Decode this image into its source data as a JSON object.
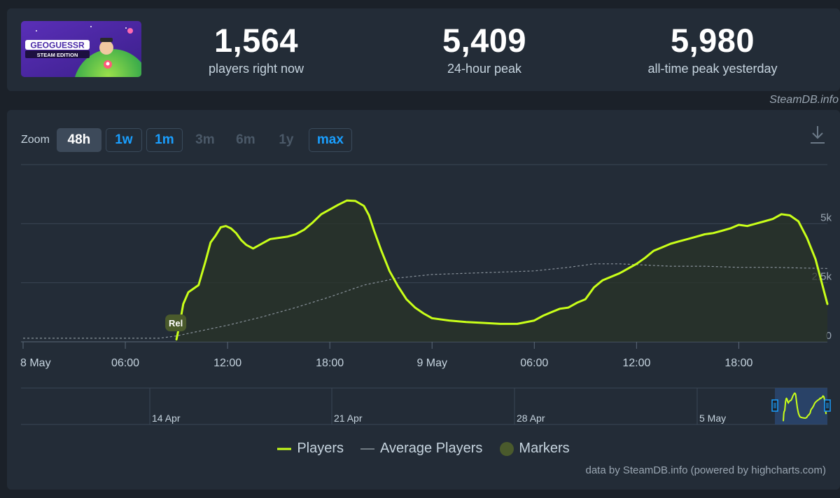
{
  "stats": [
    {
      "value": "1,564",
      "label": "players right now"
    },
    {
      "value": "5,409",
      "label": "24-hour peak"
    },
    {
      "value": "5,980",
      "label": "all-time peak yesterday"
    }
  ],
  "game": {
    "logo_text": "GEOGUESSR",
    "edition_text": "STEAM EDITION"
  },
  "credit_top": "SteamDB.info",
  "zoom": {
    "label": "Zoom",
    "buttons": [
      {
        "label": "48h",
        "state": "selected"
      },
      {
        "label": "1w",
        "state": "enabled"
      },
      {
        "label": "1m",
        "state": "enabled"
      },
      {
        "label": "3m",
        "state": "disabled"
      },
      {
        "label": "6m",
        "state": "disabled"
      },
      {
        "label": "1y",
        "state": "disabled"
      },
      {
        "label": "max",
        "state": "enabled"
      }
    ]
  },
  "colors": {
    "players": "#c9ff19",
    "average": "#8a939c",
    "marker": "#4a5a2c",
    "accent": "#1a9fff"
  },
  "legend": {
    "players": "Players",
    "average": "Average Players",
    "markers": "Markers"
  },
  "credit_bottom": "data by SteamDB.info (powered by highcharts.com)",
  "icons": {
    "download": "download-icon"
  },
  "chart_data": {
    "type": "line",
    "x_unit": "hours since 8 May 00:00",
    "xlim": [
      0,
      47.2
    ],
    "ylim": [
      0,
      7500
    ],
    "y_ticks": [
      {
        "value": 0,
        "label": "0"
      },
      {
        "value": 2500,
        "label": "2.5k"
      },
      {
        "value": 5000,
        "label": "5k"
      }
    ],
    "x_ticks": [
      {
        "value": 0,
        "label": "8 May"
      },
      {
        "value": 6,
        "label": "06:00"
      },
      {
        "value": 12,
        "label": "12:00"
      },
      {
        "value": 18,
        "label": "18:00"
      },
      {
        "value": 24,
        "label": "9 May"
      },
      {
        "value": 30,
        "label": "06:00"
      },
      {
        "value": 36,
        "label": "12:00"
      },
      {
        "value": 42,
        "label": "18:00"
      }
    ],
    "grid": true,
    "legend_position": "bottom-center",
    "series": [
      {
        "name": "Players",
        "x": [
          9.0,
          9.2,
          9.4,
          9.7,
          10.0,
          10.3,
          10.7,
          11.0,
          11.3,
          11.6,
          11.9,
          12.2,
          12.5,
          12.8,
          13.1,
          13.5,
          14.0,
          14.5,
          15.0,
          15.5,
          16.0,
          16.5,
          17.0,
          17.5,
          18.0,
          18.5,
          19.0,
          19.5,
          20.0,
          20.3,
          20.6,
          21.0,
          21.5,
          22.0,
          22.5,
          23.0,
          23.5,
          24.0,
          25.0,
          26.0,
          27.0,
          28.0,
          29.0,
          30.0,
          30.5,
          31.0,
          31.5,
          32.0,
          32.5,
          33.0,
          33.5,
          34.0,
          34.5,
          35.0,
          35.5,
          36.0,
          36.5,
          37.0,
          37.5,
          38.0,
          38.5,
          39.0,
          39.5,
          40.0,
          40.5,
          41.0,
          41.5,
          42.0,
          42.5,
          43.0,
          43.5,
          44.0,
          44.5,
          45.0,
          45.5,
          46.0,
          46.5,
          47.2
        ],
        "y": [
          100,
          800,
          1600,
          2100,
          2250,
          2400,
          3400,
          4200,
          4500,
          4850,
          4900,
          4800,
          4600,
          4300,
          4100,
          3950,
          4150,
          4350,
          4400,
          4450,
          4550,
          4750,
          5050,
          5400,
          5600,
          5800,
          5980,
          5960,
          5750,
          5350,
          4700,
          3900,
          3000,
          2350,
          1800,
          1450,
          1200,
          1000,
          900,
          840,
          800,
          760,
          760,
          900,
          1100,
          1250,
          1400,
          1450,
          1650,
          1800,
          2300,
          2600,
          2750,
          2900,
          3100,
          3300,
          3550,
          3850,
          4000,
          4150,
          4250,
          4350,
          4450,
          4550,
          4600,
          4700,
          4800,
          4950,
          4900,
          5000,
          5100,
          5200,
          5400,
          5350,
          5100,
          4400,
          3500,
          1600
        ]
      },
      {
        "name": "Average Players",
        "x": [
          0,
          8.0,
          9.0,
          10.0,
          12.0,
          14.0,
          16.0,
          18.0,
          20.0,
          22.0,
          24.0,
          26.0,
          28.0,
          30.0,
          32.0,
          33.5,
          35.0,
          36.5,
          38.0,
          40.0,
          42.0,
          44.0,
          47.2
        ],
        "y": [
          150,
          150,
          250,
          400,
          700,
          1050,
          1450,
          1900,
          2400,
          2700,
          2850,
          2900,
          2950,
          3000,
          3150,
          3300,
          3300,
          3250,
          3200,
          3200,
          3150,
          3150,
          3100
        ]
      }
    ],
    "markers": [
      {
        "x": 9.0,
        "label": "Rel"
      }
    ],
    "navigator": {
      "labels": [
        "14 Apr",
        "21 Apr",
        "28 Apr",
        "5 May"
      ]
    }
  }
}
